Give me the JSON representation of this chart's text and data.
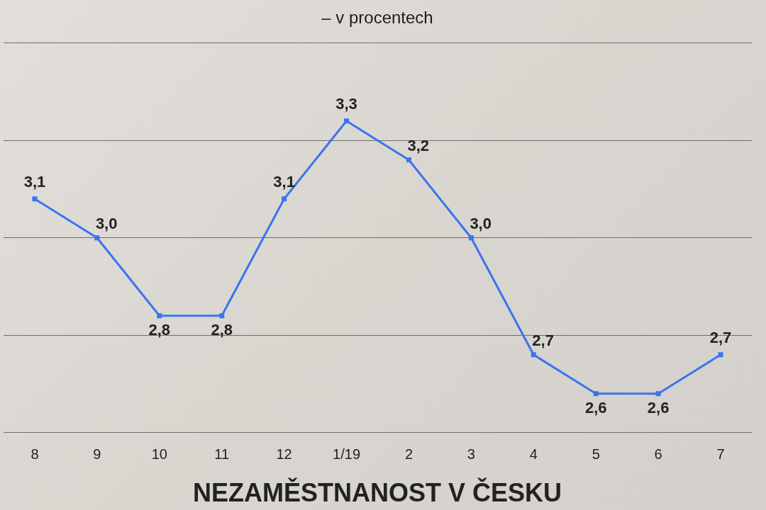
{
  "chart_data": {
    "type": "line",
    "title": "NEZAMĚSTNANOST V ČESKU",
    "subtitle": "– v procentech",
    "categories": [
      "8",
      "9",
      "10",
      "11",
      "12",
      "1/19",
      "2",
      "3",
      "4",
      "5",
      "6",
      "7"
    ],
    "values": [
      3.1,
      3.0,
      2.8,
      2.8,
      3.1,
      3.3,
      3.2,
      3.0,
      2.7,
      2.6,
      2.6,
      2.7
    ],
    "value_labels": [
      "3,1",
      "3,0",
      "2,8",
      "2,8",
      "3,1",
      "3,3",
      "3,2",
      "3,0",
      "2,7",
      "2,6",
      "2,6",
      "2,7"
    ],
    "color": "#3b74ee",
    "marker": "square",
    "ylim": [
      2.5,
      3.5
    ],
    "yticks": [
      {
        "value": 2.5,
        "label": null
      },
      {
        "value": 2.75,
        "label": null
      },
      {
        "value": 3.0,
        "label": null
      },
      {
        "value": 3.25,
        "label": null
      },
      {
        "value": 3.5,
        "label": null
      }
    ],
    "grid": "y",
    "tick_labels": "x"
  }
}
